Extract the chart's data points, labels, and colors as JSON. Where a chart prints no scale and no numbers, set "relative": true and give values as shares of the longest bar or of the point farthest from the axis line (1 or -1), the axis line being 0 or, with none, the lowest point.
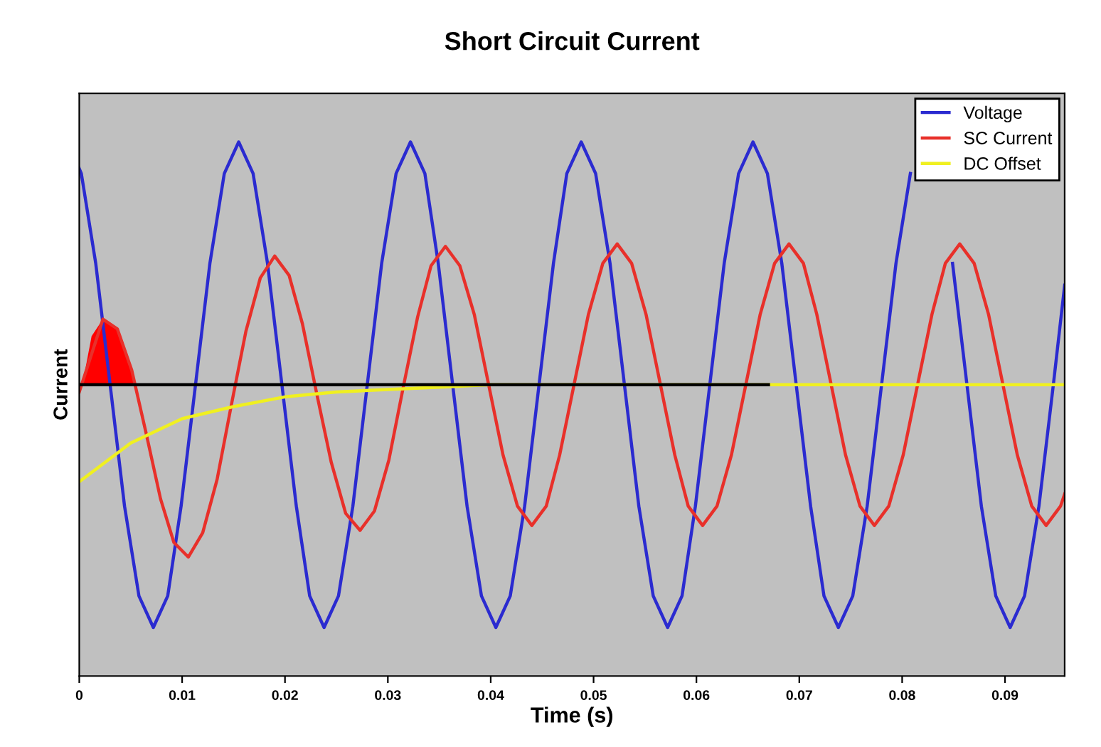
{
  "chart_data": {
    "type": "line",
    "title": "Short Circuit Current",
    "xlabel": "Time (s)",
    "ylabel": "Current",
    "relative": true,
    "xlim": [
      0,
      0.0958
    ],
    "xticks": [
      0,
      0.01,
      0.02,
      0.03,
      0.04,
      0.05,
      0.06,
      0.07,
      0.08,
      0.09
    ],
    "grid": false,
    "legend": "top right",
    "tick_labels": "x",
    "series": [
      {
        "type": "area",
        "color": "#ff0000",
        "x": [
          0.0003,
          0.0012,
          0.0023,
          0.0037,
          0.0051,
          0.0055
        ],
        "values": [
          0,
          0.2,
          0.27,
          0.23,
          0.06,
          0
        ]
      },
      {
        "type": "line",
        "color": "#000000",
        "x": [
          0,
          0.067
        ],
        "values": [
          0,
          0
        ]
      },
      {
        "name": "Voltage",
        "color": "#2b2bd0",
        "x": [
          0,
          0.0002,
          0.0016,
          0.003,
          0.0044,
          0.0058,
          0.0072,
          0.0086,
          0.0099,
          0.0113,
          0.0127,
          0.0141,
          0.0155,
          0.0169,
          0.0183,
          0.0197,
          0.0211,
          0.0224,
          0.0238,
          0.0252,
          0.0266,
          0.028,
          0.0294,
          0.0308,
          0.0322,
          0.0336,
          0.0349,
          0.0363,
          0.0377,
          0.0391,
          0.0405,
          0.0419,
          0.0433,
          0.0447,
          0.0461,
          0.0474,
          0.0488,
          0.0502,
          0.0516,
          0.053,
          0.0544,
          0.0558,
          0.0572,
          0.0586,
          0.0599,
          0.0613,
          0.0627,
          0.0641,
          0.0655,
          0.0669,
          0.0683,
          0.0697,
          0.0711,
          0.0724,
          0.0738,
          0.0752,
          0.0766,
          0.078,
          0.0794,
          0.0808,
          0.0822,
          0.0836,
          0.0849,
          0.0863,
          0.0877,
          0.0891,
          0.0905,
          0.0919,
          0.0933,
          0.0947,
          0.0958
        ],
        "values": [
          0.89,
          0.87,
          0.5,
          0,
          -0.5,
          -0.87,
          -1,
          -0.87,
          -0.5,
          0,
          0.5,
          0.87,
          1,
          0.87,
          0.5,
          0,
          -0.5,
          -0.87,
          -1,
          -0.87,
          -0.5,
          0,
          0.5,
          0.87,
          1,
          0.87,
          0.5,
          0,
          -0.5,
          -0.87,
          -1,
          -0.87,
          -0.5,
          0,
          0.5,
          0.87,
          1,
          0.87,
          0.5,
          0,
          -0.5,
          -0.87,
          -1,
          -0.87,
          -0.5,
          0,
          0.5,
          0.87,
          1,
          0.87,
          0.5,
          0,
          -0.5,
          -0.87,
          -1,
          -0.87,
          -0.5,
          0,
          0.5,
          0.87,
          null,
          null,
          0.5,
          0,
          -0.5,
          -0.87,
          -1,
          -0.87,
          -0.5,
          0,
          0.41
        ]
      },
      {
        "name": "SC Current",
        "color": "#e8302a",
        "x": [
          0,
          0.0023,
          0.0037,
          0.0051,
          0.0065,
          0.0079,
          0.0092,
          0.0106,
          0.012,
          0.0134,
          0.0148,
          0.0162,
          0.0176,
          0.019,
          0.0204,
          0.0217,
          0.0231,
          0.0245,
          0.0259,
          0.0273,
          0.0287,
          0.0301,
          0.0315,
          0.0329,
          0.0342,
          0.0356,
          0.037,
          0.0384,
          0.0398,
          0.0412,
          0.0426,
          0.044,
          0.0454,
          0.0467,
          0.0481,
          0.0495,
          0.0509,
          0.0523,
          0.0537,
          0.0551,
          0.0565,
          0.0579,
          0.0592,
          0.0606,
          0.062,
          0.0634,
          0.0648,
          0.0662,
          0.0676,
          0.069,
          0.0704,
          0.0717,
          0.0731,
          0.0745,
          0.0759,
          0.0773,
          0.0787,
          0.0801,
          0.0815,
          0.0829,
          0.0842,
          0.0856,
          0.087,
          0.0884,
          0.0898,
          0.0912,
          0.0926,
          0.094,
          0.0954,
          0.0958
        ],
        "values": [
          -0.03,
          0.27,
          0.23,
          0.06,
          -0.2,
          -0.47,
          -0.65,
          -0.71,
          -0.61,
          -0.39,
          -0.08,
          0.22,
          0.44,
          0.53,
          0.45,
          0.25,
          -0.04,
          -0.32,
          -0.53,
          -0.6,
          -0.52,
          -0.31,
          -0.01,
          0.28,
          0.49,
          0.57,
          0.49,
          0.29,
          0,
          -0.29,
          -0.5,
          -0.58,
          -0.5,
          -0.29,
          0,
          0.29,
          0.5,
          0.58,
          0.5,
          0.29,
          0,
          -0.29,
          -0.5,
          -0.58,
          -0.5,
          -0.29,
          0,
          0.29,
          0.5,
          0.58,
          0.5,
          0.29,
          0,
          -0.29,
          -0.5,
          -0.58,
          -0.5,
          -0.29,
          0,
          0.29,
          0.5,
          0.58,
          0.5,
          0.29,
          0,
          -0.29,
          -0.5,
          -0.58,
          -0.5,
          -0.45
        ]
      },
      {
        "name": "DC Offset",
        "color": "#f0f020",
        "x": [
          0,
          0.005,
          0.01,
          0.015,
          0.02,
          0.025,
          0.03,
          0.035,
          0.04,
          0.067,
          0.0958
        ],
        "values": [
          -0.4,
          -0.24,
          -0.14,
          -0.09,
          -0.05,
          -0.03,
          -0.02,
          -0.01,
          0,
          0,
          0
        ]
      }
    ]
  }
}
